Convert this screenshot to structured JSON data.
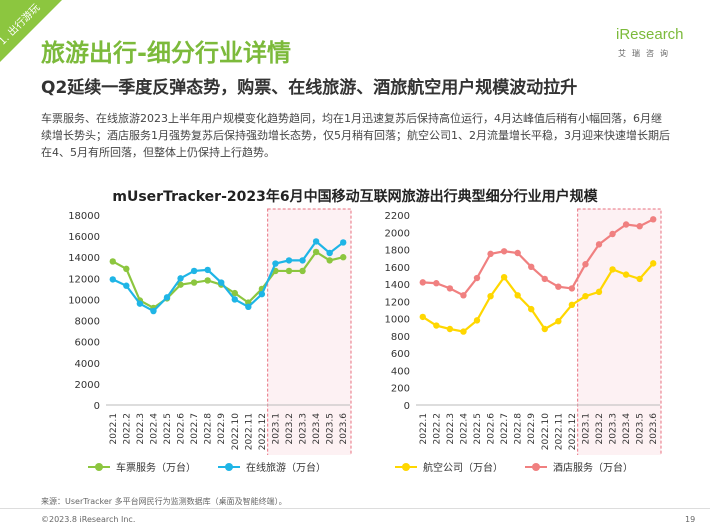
{
  "section_tag": "1. 出行游玩",
  "title": "旅游出行-细分行业详情",
  "subtitle": "Q2延续一季度反弹态势，购票、在线旅游、酒旅航空用户规模波动拉升",
  "body": "车票服务、在线旅游2023上半年用户规模变化趋势趋同，均在1月迅速复苏后保持高位运行，4月达峰值后稍有小幅回落，6月继续增长势头；酒店服务1月强势复苏后保持强劲增长态势，仅5月稍有回落；航空公司1、2月流量增长平稳，3月迎来快速增长期后在4、5月有所回落，但整体上仍保持上行趋势。",
  "logo": {
    "prefix": "i",
    "word": "iResearch",
    "cn": "艾瑞咨询"
  },
  "colors": {
    "brand": "#7cba3b",
    "train": "#8cc63f",
    "online": "#1fb5e6",
    "airline": "#ffd700",
    "hotel": "#f08080",
    "highlight": "#e8707f"
  },
  "source": "来源：UserTracker 多平台网民行为监测数据库（桌面及智能终端）。",
  "copyright": "©2023.8 iResearch Inc.",
  "page_number": "19",
  "chart_data": [
    {
      "type": "line",
      "title": "mUserTracker-2023年6月中国移动互联网旅游出行典型细分行业用户规模",
      "categories": [
        "2022.1",
        "2022.2",
        "2022.3",
        "2022.4",
        "2022.5",
        "2022.6",
        "2022.7",
        "2022.8",
        "2022.9",
        "2022.10",
        "2022.11",
        "2022.12",
        "2023.1",
        "2023.2",
        "2023.3",
        "2023.4",
        "2023.5",
        "2023.6"
      ],
      "ylim": [
        0,
        18000
      ],
      "yticks": [
        0,
        2000,
        4000,
        6000,
        8000,
        10000,
        12000,
        14000,
        16000,
        18000
      ],
      "highlight_range": [
        "2023.1",
        "2023.6"
      ],
      "series": [
        {
          "name": "车票服务（万台）",
          "color": "#8cc63f",
          "values": [
            13600,
            12900,
            9900,
            9200,
            10100,
            11400,
            11600,
            11800,
            11400,
            10600,
            9700,
            11000,
            12700,
            12700,
            12700,
            14500,
            13700,
            14000
          ]
        },
        {
          "name": "在线旅游（万台）",
          "color": "#1fb5e6",
          "values": [
            11900,
            11300,
            9600,
            8900,
            10200,
            12000,
            12700,
            12800,
            11600,
            10000,
            9300,
            10500,
            13400,
            13700,
            13700,
            15500,
            14400,
            15400
          ]
        }
      ]
    },
    {
      "type": "line",
      "title": "",
      "categories": [
        "2022.1",
        "2022.2",
        "2022.3",
        "2022.4",
        "2022.5",
        "2022.6",
        "2022.7",
        "2022.8",
        "2022.9",
        "2022.10",
        "2022.11",
        "2022.12",
        "2023.1",
        "2023.2",
        "2023.3",
        "2023.4",
        "2023.5",
        "2023.6"
      ],
      "ylim": [
        0,
        2200
      ],
      "yticks": [
        0,
        200,
        400,
        600,
        800,
        1000,
        1200,
        1400,
        1600,
        1800,
        2000,
        2200
      ],
      "highlight_range": [
        "2023.1",
        "2023.6"
      ],
      "series": [
        {
          "name": "航空公司（万台）",
          "color": "#ffd700",
          "values": [
            1020,
            920,
            880,
            850,
            980,
            1260,
            1480,
            1270,
            1110,
            880,
            970,
            1160,
            1260,
            1310,
            1570,
            1510,
            1460,
            1640
          ]
        },
        {
          "name": "酒店服务（万台）",
          "color": "#f08080",
          "values": [
            1420,
            1410,
            1350,
            1270,
            1470,
            1750,
            1780,
            1760,
            1600,
            1460,
            1370,
            1350,
            1630,
            1860,
            1980,
            2090,
            2070,
            2150
          ]
        }
      ]
    }
  ]
}
